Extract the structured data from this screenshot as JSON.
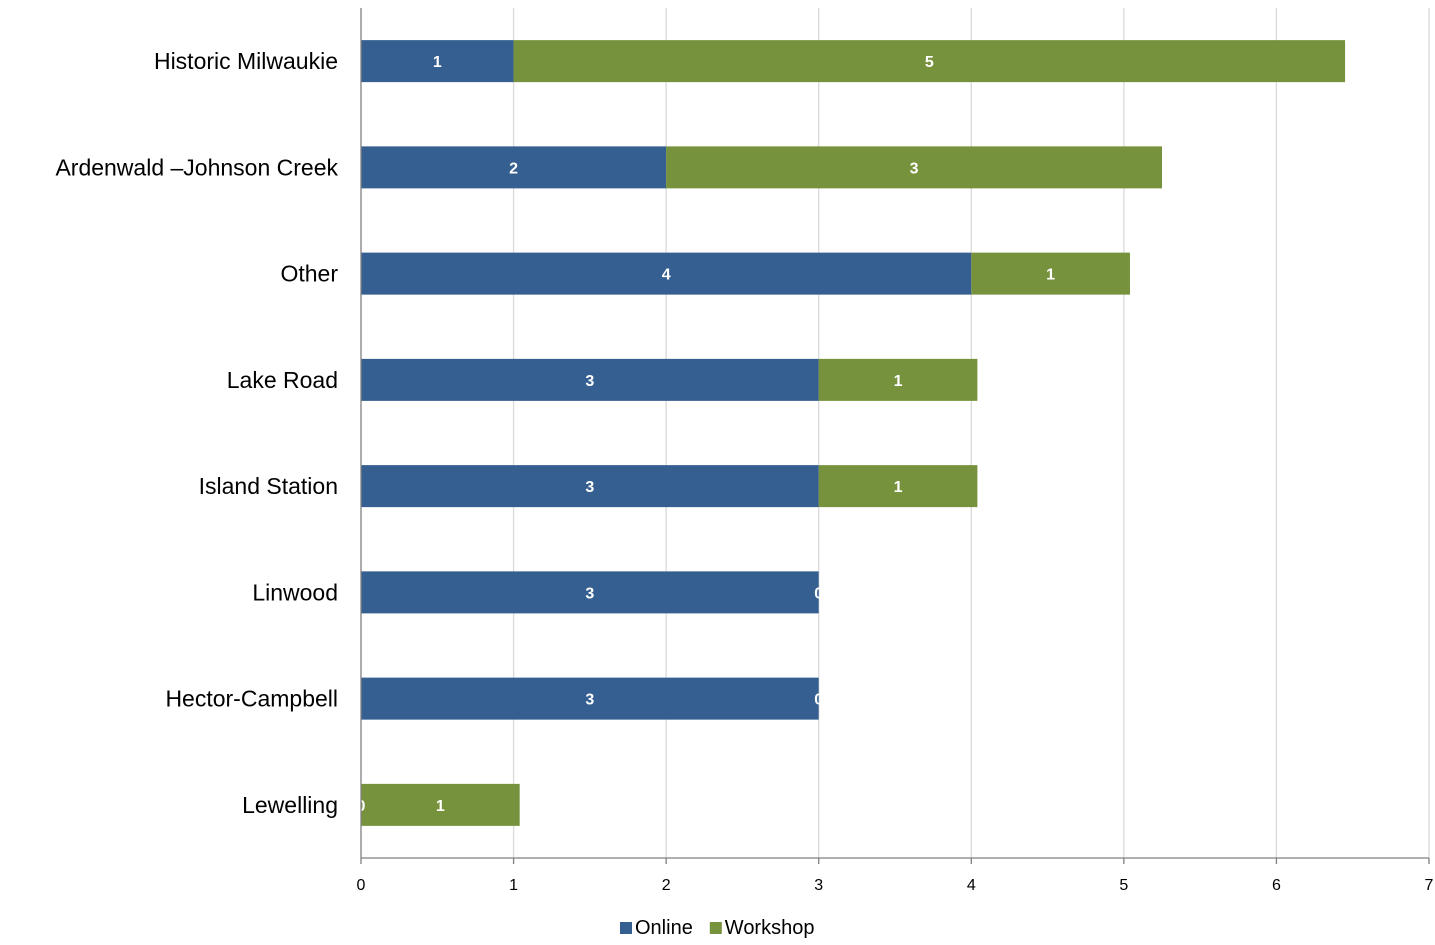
{
  "chart_data": {
    "type": "bar",
    "orientation": "horizontal",
    "stacked": true,
    "categories": [
      "Historic Milwaukie",
      "Ardenwald –Johnson Creek",
      "Other",
      "Lake Road",
      "Island Station",
      "Linwood",
      "Hector-Campbell",
      "Lewelling"
    ],
    "series": [
      {
        "name": "Online",
        "color": "#355F91",
        "values": [
          1,
          2,
          4,
          3,
          3,
          3,
          3,
          0
        ],
        "labels": [
          "1",
          "2",
          "4",
          "3",
          "3",
          "3",
          "3",
          "0"
        ]
      },
      {
        "name": "Workshop",
        "color": "#76923C",
        "values": [
          5.45,
          3.25,
          1.04,
          1.04,
          1.04,
          0,
          0,
          1.04
        ],
        "labels": [
          "5",
          "3",
          "1",
          "1",
          "1",
          "0",
          "0",
          "1"
        ]
      }
    ],
    "xlim": [
      0,
      7
    ],
    "x_ticks": [
      "0",
      "1",
      "2",
      "3",
      "4",
      "5",
      "6",
      "7"
    ],
    "grid": true,
    "legend_position": "bottom"
  }
}
